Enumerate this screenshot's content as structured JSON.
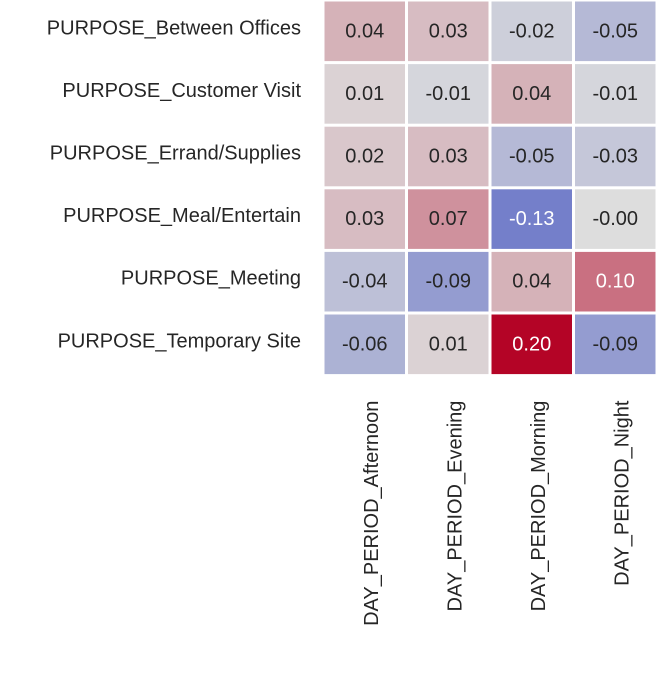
{
  "chart_data": {
    "type": "heatmap",
    "rows": [
      "PURPOSE_Between Offices",
      "PURPOSE_Customer Visit",
      "PURPOSE_Errand/Supplies",
      "PURPOSE_Meal/Entertain",
      "PURPOSE_Meeting",
      "PURPOSE_Temporary Site"
    ],
    "columns": [
      "DAY_PERIOD_Afternoon",
      "DAY_PERIOD_Evening",
      "DAY_PERIOD_Morning",
      "DAY_PERIOD_Night"
    ],
    "values": [
      [
        0.04,
        0.03,
        -0.02,
        -0.05
      ],
      [
        0.01,
        -0.01,
        0.04,
        -0.01
      ],
      [
        0.02,
        0.03,
        -0.05,
        -0.03
      ],
      [
        0.03,
        0.07,
        -0.13,
        0.0
      ],
      [
        -0.04,
        -0.09,
        0.04,
        0.1
      ],
      [
        -0.06,
        0.01,
        0.2,
        -0.09
      ]
    ],
    "cell_labels": [
      [
        "0.04",
        "0.03",
        "-0.02",
        "-0.05"
      ],
      [
        "0.01",
        "-0.01",
        "0.04",
        "-0.01"
      ],
      [
        "0.02",
        "0.03",
        "-0.05",
        "-0.03"
      ],
      [
        "0.03",
        "0.07",
        "-0.13",
        "-0.00"
      ],
      [
        "-0.04",
        "-0.09",
        "0.04",
        "0.10"
      ],
      [
        "-0.06",
        "0.01",
        "0.20",
        "-0.09"
      ]
    ],
    "colormap": "coolwarm",
    "color_range": [
      -0.2,
      0.2
    ],
    "colors": {
      "low": "#3b4cc0",
      "mid": "#dddddd",
      "high": "#b40426",
      "grid": "#ffffff"
    },
    "colorbar": false
  }
}
